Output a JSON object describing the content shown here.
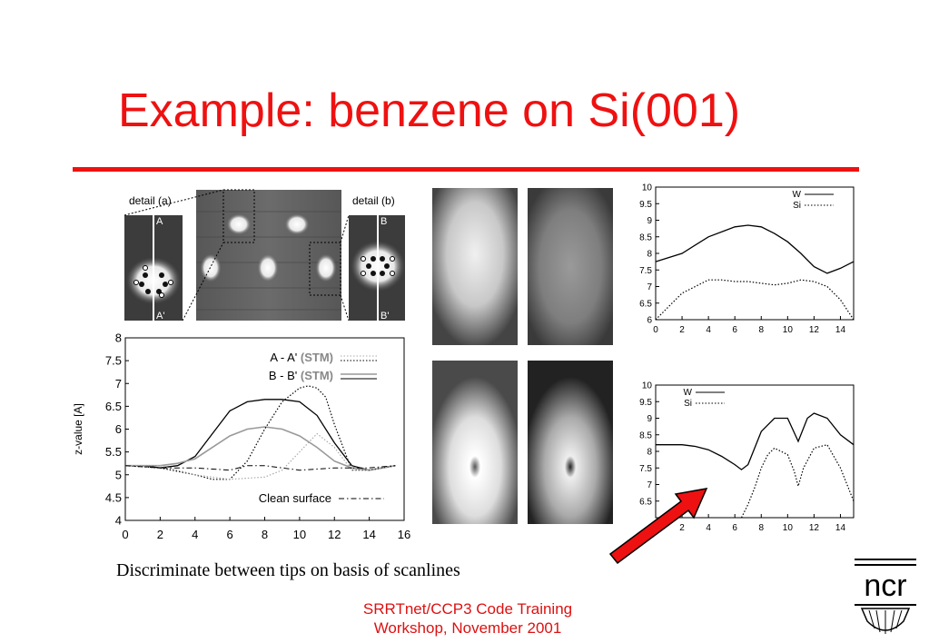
{
  "slide": {
    "title": "Example: benzene on Si(001)",
    "caption": "Discriminate between tips on basis of scanlines",
    "footer_line1": "SRRTnet/CCP3 Code Training",
    "footer_line2": "Workshop, November 2001",
    "logo_text": "ncr",
    "colors": {
      "title": "#ee1111",
      "footer": "#dd1111",
      "arrow": "#ee1111"
    }
  },
  "stm_images": {
    "detail_a_label": "detail (a)",
    "detail_b_label": "detail (b)",
    "line_a_top": "A",
    "line_a_bottom": "A'",
    "line_b_top": "B",
    "line_b_bottom": "B'"
  },
  "chart_data": [
    {
      "type": "line",
      "ylabel": "z-value [A]",
      "xlim": [
        0,
        16
      ],
      "ylim": [
        4,
        8
      ],
      "xticks": [
        0,
        2,
        4,
        6,
        8,
        10,
        12,
        14,
        16
      ],
      "yticks": [
        4,
        4.5,
        5,
        5.5,
        6,
        6.5,
        7,
        7.5,
        8
      ],
      "legend": [
        {
          "label": "A - A'",
          "suffix": "(STM)",
          "style": "dotted-double"
        },
        {
          "label": "B - B'",
          "suffix": "(STM)",
          "style": "solid-double"
        }
      ],
      "annotation": "Clean surface",
      "series": [
        {
          "style": "solid",
          "x": [
            0,
            1,
            2,
            3,
            4,
            5,
            6,
            7,
            8,
            9,
            10,
            11,
            12,
            13,
            14,
            15.5
          ],
          "y": [
            5.2,
            5.2,
            5.15,
            5.2,
            5.4,
            5.9,
            6.4,
            6.6,
            6.65,
            6.65,
            6.6,
            6.3,
            5.7,
            5.2,
            5.1,
            5.2
          ]
        },
        {
          "style": "gray",
          "x": [
            0,
            1,
            2,
            3,
            4,
            5,
            6,
            7,
            8,
            9,
            10,
            11,
            12,
            13,
            14,
            15.5
          ],
          "y": [
            5.2,
            5.2,
            5.2,
            5.25,
            5.35,
            5.6,
            5.85,
            6.0,
            6.05,
            6.0,
            5.85,
            5.6,
            5.3,
            5.15,
            5.1,
            5.2
          ]
        },
        {
          "style": "dotted",
          "x": [
            0,
            2,
            4,
            5,
            6,
            7,
            8,
            9,
            10,
            10.5,
            11,
            11.5,
            12,
            13,
            14,
            15.5
          ],
          "y": [
            5.2,
            5.15,
            5.0,
            4.9,
            4.9,
            5.3,
            6.0,
            6.6,
            6.9,
            6.95,
            6.9,
            6.7,
            6.1,
            5.1,
            5.1,
            5.2
          ]
        },
        {
          "style": "gray-dotted",
          "x": [
            0,
            2,
            4,
            6,
            8,
            9,
            10,
            11,
            12,
            13,
            14,
            15.5
          ],
          "y": [
            5.2,
            5.2,
            5.0,
            4.9,
            4.95,
            5.1,
            5.5,
            5.9,
            5.6,
            5.1,
            5.1,
            5.2
          ]
        },
        {
          "style": "dashdot",
          "x": [
            0,
            2,
            4,
            6,
            7,
            8,
            9,
            10,
            12,
            14,
            15.5
          ],
          "y": [
            5.2,
            5.15,
            5.15,
            5.1,
            5.2,
            5.2,
            5.15,
            5.1,
            5.15,
            5.15,
            5.2
          ]
        }
      ]
    },
    {
      "type": "line",
      "xlim": [
        0,
        15
      ],
      "ylim": [
        6,
        10
      ],
      "xticks": [
        0,
        2,
        4,
        6,
        8,
        10,
        12,
        14
      ],
      "yticks": [
        6,
        6.5,
        7,
        7.5,
        8,
        8.5,
        9,
        9.5,
        10
      ],
      "legend": [
        {
          "label": "W",
          "style": "solid"
        },
        {
          "label": "Si",
          "style": "dotted"
        }
      ],
      "series": [
        {
          "name": "W",
          "style": "solid",
          "x": [
            0,
            2,
            4,
            6,
            7,
            8,
            9,
            10,
            11,
            12,
            13,
            14,
            15
          ],
          "y": [
            7.75,
            8.0,
            8.5,
            8.8,
            8.85,
            8.8,
            8.6,
            8.35,
            8.0,
            7.6,
            7.4,
            7.55,
            7.75
          ]
        },
        {
          "name": "Si",
          "style": "dotted",
          "x": [
            0,
            1,
            2,
            3,
            4,
            5,
            6,
            7,
            8,
            9,
            10,
            11,
            12,
            13,
            14,
            15
          ],
          "y": [
            6.0,
            6.4,
            6.8,
            7.0,
            7.2,
            7.2,
            7.15,
            7.15,
            7.1,
            7.05,
            7.1,
            7.2,
            7.15,
            7.0,
            6.6,
            6.0
          ]
        }
      ]
    },
    {
      "type": "line",
      "xlim": [
        0,
        15
      ],
      "ylim": [
        6,
        10
      ],
      "xticks": [
        2,
        4,
        6,
        8,
        10,
        12,
        14
      ],
      "yticks": [
        6.5,
        7,
        7.5,
        8,
        8.5,
        9,
        9.5,
        10
      ],
      "legend": [
        {
          "label": "W",
          "style": "solid"
        },
        {
          "label": "Si",
          "style": "dotted"
        }
      ],
      "series": [
        {
          "name": "W",
          "style": "solid",
          "x": [
            0,
            2,
            3,
            4,
            5,
            6,
            6.5,
            7,
            8,
            9,
            10,
            10.8,
            11.5,
            12,
            13,
            14,
            15
          ],
          "y": [
            8.2,
            8.2,
            8.15,
            8.05,
            7.85,
            7.6,
            7.45,
            7.6,
            8.6,
            9.0,
            9.0,
            8.3,
            9.0,
            9.15,
            9.0,
            8.5,
            8.2
          ]
        },
        {
          "name": "Si",
          "style": "dotted",
          "x": [
            6.5,
            7,
            7.5,
            8,
            8.5,
            9,
            10,
            10.5,
            10.8,
            11.2,
            12,
            13,
            14,
            15
          ],
          "y": [
            6.0,
            6.4,
            6.9,
            7.5,
            7.9,
            8.1,
            7.9,
            7.4,
            6.95,
            7.5,
            8.1,
            8.2,
            7.5,
            6.5
          ]
        }
      ]
    }
  ]
}
